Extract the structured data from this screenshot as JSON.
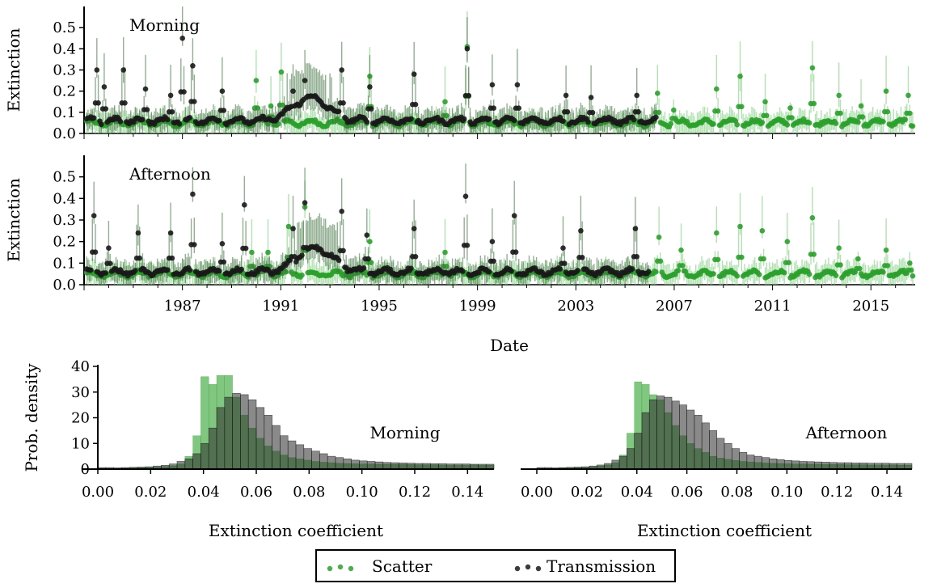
{
  "chart_data": [
    {
      "type": "scatter",
      "panel_label": "Morning",
      "ylabel": "Extinction",
      "ylim": [
        0,
        0.6
      ],
      "yticks": [
        "0.0",
        "0.1",
        "0.2",
        "0.3",
        "0.4",
        "0.5"
      ],
      "xlim": [
        1983.0,
        2016.8
      ],
      "series": [
        {
          "name": "Scatter",
          "color": "#2ca02c",
          "date_range": [
            1983.1,
            2016.7
          ],
          "baseline": 0.05,
          "spikes": [
            [
              1990.0,
              0.25
            ],
            [
              1990.6,
              0.13
            ],
            [
              1991.0,
              0.29
            ],
            [
              1994.6,
              0.27
            ],
            [
              1997.7,
              0.15
            ],
            [
              1998.6,
              0.41
            ],
            [
              2006.3,
              0.19
            ],
            [
              2007.0,
              0.11
            ],
            [
              2008.7,
              0.21
            ],
            [
              2009.7,
              0.27
            ],
            [
              2010.7,
              0.15
            ],
            [
              2011.7,
              0.12
            ],
            [
              2012.6,
              0.31
            ],
            [
              2013.7,
              0.18
            ],
            [
              2014.6,
              0.13
            ],
            [
              2015.6,
              0.2
            ],
            [
              2016.5,
              0.18
            ],
            [
              2016.9,
              0.1
            ]
          ]
        },
        {
          "name": "Transmission",
          "color": "#1a1a1a",
          "date_range": [
            1983.1,
            2006.3
          ],
          "baseline": 0.06,
          "bump": {
            "center": 1992.2,
            "peak": 0.17,
            "width": 1.0
          },
          "spikes": [
            [
              1983.5,
              0.3
            ],
            [
              1983.8,
              0.22
            ],
            [
              1984.6,
              0.3
            ],
            [
              1985.5,
              0.21
            ],
            [
              1986.5,
              0.18
            ],
            [
              1987.0,
              0.45
            ],
            [
              1987.4,
              0.32
            ],
            [
              1988.6,
              0.2
            ],
            [
              1991.5,
              0.2
            ],
            [
              1992.0,
              0.25
            ],
            [
              1993.5,
              0.3
            ],
            [
              1994.6,
              0.22
            ],
            [
              1996.4,
              0.28
            ],
            [
              1998.6,
              0.4
            ],
            [
              1999.6,
              0.23
            ],
            [
              2000.6,
              0.23
            ],
            [
              2002.6,
              0.18
            ],
            [
              2003.6,
              0.17
            ],
            [
              2005.5,
              0.18
            ]
          ]
        }
      ]
    },
    {
      "type": "scatter",
      "panel_label": "Afternoon",
      "ylabel": "Extinction",
      "xlabel": "Date",
      "ylim": [
        0,
        0.6
      ],
      "yticks": [
        "0.0",
        "0.1",
        "0.2",
        "0.3",
        "0.4",
        "0.5"
      ],
      "xlim": [
        1983.0,
        2016.8
      ],
      "xticks": [
        "1987",
        "1991",
        "1995",
        "1999",
        "2003",
        "2007",
        "2011",
        "2015"
      ],
      "series": [
        {
          "name": "Scatter",
          "color": "#2ca02c",
          "date_range": [
            1983.1,
            2016.7
          ],
          "baseline": 0.05,
          "spikes": [
            [
              1989.8,
              0.15
            ],
            [
              1990.5,
              0.15
            ],
            [
              1991.3,
              0.27
            ],
            [
              1992.0,
              0.36
            ],
            [
              1994.6,
              0.2
            ],
            [
              1997.7,
              0.15
            ],
            [
              2006.4,
              0.22
            ],
            [
              2007.3,
              0.16
            ],
            [
              2008.7,
              0.24
            ],
            [
              2009.7,
              0.27
            ],
            [
              2010.6,
              0.25
            ],
            [
              2011.6,
              0.2
            ],
            [
              2012.6,
              0.31
            ],
            [
              2013.7,
              0.17
            ],
            [
              2014.5,
              0.12
            ],
            [
              2015.6,
              0.16
            ],
            [
              2016.6,
              0.1
            ]
          ]
        },
        {
          "name": "Transmission",
          "color": "#1a1a1a",
          "date_range": [
            1983.1,
            2006.0
          ],
          "baseline": 0.06,
          "bump": {
            "center": 1992.4,
            "peak": 0.17,
            "width": 1.0
          },
          "spikes": [
            [
              1983.4,
              0.32
            ],
            [
              1984.0,
              0.17
            ],
            [
              1985.2,
              0.24
            ],
            [
              1986.5,
              0.24
            ],
            [
              1987.4,
              0.42
            ],
            [
              1988.6,
              0.19
            ],
            [
              1989.5,
              0.37
            ],
            [
              1991.5,
              0.26
            ],
            [
              1992.0,
              0.38
            ],
            [
              1993.5,
              0.34
            ],
            [
              1994.5,
              0.23
            ],
            [
              1996.4,
              0.26
            ],
            [
              1998.5,
              0.41
            ],
            [
              1999.6,
              0.2
            ],
            [
              2000.5,
              0.32
            ],
            [
              2002.5,
              0.17
            ],
            [
              2003.2,
              0.25
            ],
            [
              2005.4,
              0.26
            ]
          ]
        }
      ]
    },
    {
      "type": "bar",
      "panel_label": "Morning",
      "ylabel": "Prob. density",
      "xlabel": "Extinction coefficient",
      "ylim": [
        0,
        40
      ],
      "yticks": [
        "0",
        "10",
        "20",
        "30",
        "40"
      ],
      "xlim": [
        0.0,
        0.15
      ],
      "xticks": [
        "0.00",
        "0.02",
        "0.04",
        "0.06",
        "0.08",
        "0.10",
        "0.12",
        "0.14"
      ],
      "bin_width": 0.003,
      "series": [
        {
          "name": "Scatter",
          "color": "#2ca02c",
          "values": [
            0.3,
            0.3,
            0.3,
            0.4,
            0.5,
            0.6,
            0.7,
            0.8,
            1.0,
            1.3,
            2.0,
            5.0,
            13.0,
            36.0,
            33.0,
            36.5,
            36.5,
            28.0,
            21.0,
            16.0,
            12.0,
            9.0,
            7.0,
            5.5,
            4.5,
            4.0,
            3.5,
            3.0,
            2.7,
            2.5,
            2.3,
            2.2,
            2.1,
            2.0,
            2.0,
            1.9,
            1.9,
            1.8,
            1.8,
            1.8,
            1.7,
            1.7,
            1.7,
            1.6,
            1.6,
            1.6,
            1.6,
            1.6,
            1.5,
            1.5
          ]
        },
        {
          "name": "Transmission",
          "color": "#1a1a1a",
          "values": [
            0.6,
            0.6,
            0.5,
            0.6,
            0.7,
            0.8,
            0.9,
            1.2,
            1.5,
            2.0,
            3.0,
            4.0,
            6.0,
            10.0,
            16.0,
            24.0,
            28.0,
            29.5,
            29.0,
            27.0,
            24.0,
            21.0,
            17.0,
            13.0,
            11.0,
            9.5,
            8.0,
            7.0,
            6.0,
            5.0,
            4.5,
            4.0,
            3.5,
            3.2,
            3.0,
            2.8,
            2.6,
            2.5,
            2.4,
            2.3,
            2.2,
            2.2,
            2.1,
            2.1,
            2.0,
            2.0,
            2.0,
            1.9,
            1.9,
            1.9
          ]
        }
      ]
    },
    {
      "type": "bar",
      "panel_label": "Afternoon",
      "xlabel": "Extinction coefficient",
      "ylim": [
        0,
        40
      ],
      "xlim": [
        0.0,
        0.15
      ],
      "xticks": [
        "0.00",
        "0.02",
        "0.04",
        "0.06",
        "0.08",
        "0.10",
        "0.12",
        "0.14"
      ],
      "bin_width": 0.003,
      "series": [
        {
          "name": "Scatter",
          "color": "#2ca02c",
          "values": [
            0.3,
            0.3,
            0.3,
            0.4,
            0.5,
            0.6,
            0.7,
            0.9,
            1.2,
            1.6,
            2.5,
            5.5,
            14.0,
            34.0,
            33.0,
            29.0,
            27.0,
            22.0,
            17.0,
            13.0,
            10.0,
            8.0,
            6.5,
            5.0,
            4.3,
            3.8,
            3.4,
            3.0,
            2.8,
            2.6,
            2.4,
            2.3,
            2.2,
            2.1,
            2.0,
            2.0,
            1.9,
            1.9,
            1.8,
            1.8,
            1.8,
            1.7,
            1.7,
            1.7,
            1.6,
            1.6,
            1.6,
            1.6,
            1.5,
            1.5
          ]
        },
        {
          "name": "Transmission",
          "color": "#1a1a1a",
          "values": [
            0.6,
            0.6,
            0.5,
            0.6,
            0.7,
            0.8,
            0.9,
            1.2,
            1.6,
            2.2,
            3.5,
            5.0,
            8.0,
            14.0,
            22.0,
            27.0,
            28.5,
            28.0,
            26.5,
            25.0,
            23.0,
            21.0,
            18.0,
            15.0,
            12.0,
            10.0,
            8.0,
            6.5,
            5.5,
            5.0,
            4.5,
            4.0,
            3.7,
            3.4,
            3.2,
            3.0,
            2.9,
            2.8,
            2.7,
            2.6,
            2.5,
            2.5,
            2.4,
            2.4,
            2.3,
            2.3,
            2.3,
            2.2,
            2.2,
            2.2
          ]
        }
      ]
    }
  ],
  "legend": {
    "placement": "bottom-center",
    "items": [
      {
        "label": "Scatter",
        "color": "#2ca02c"
      },
      {
        "label": "Transmission",
        "color": "#1a1a1a"
      }
    ]
  }
}
